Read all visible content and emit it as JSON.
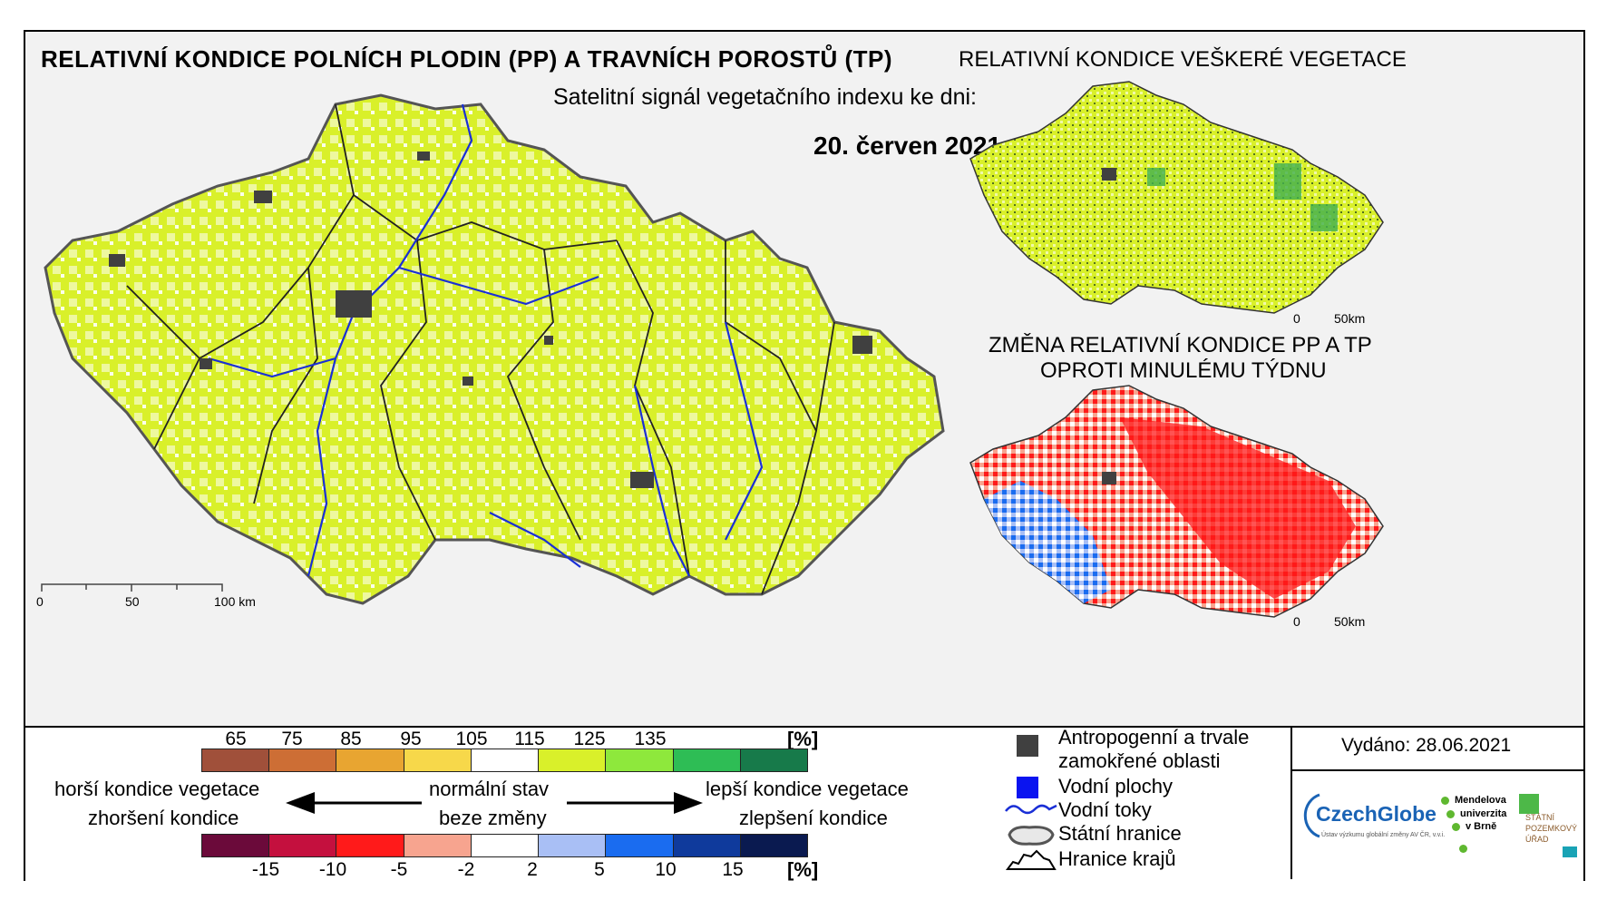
{
  "main": {
    "title": "RELATIVNÍ KONDICE POLNÍCH PLODIN (PP) A TRAVNÍCH POROSTŮ (TP)",
    "subtitle": "Satelitní signál vegetačního indexu ke dni:",
    "date": "20. červen 2021",
    "scale": [
      "0",
      "50",
      "100 km"
    ]
  },
  "inset_top": {
    "title": "RELATIVNÍ KONDICE VEŠKERÉ VEGETACE",
    "scale": [
      "0",
      "50km"
    ]
  },
  "inset_bottom": {
    "title_line1": "ZMĚNA RELATIVNÍ KONDICE PP A TP",
    "title_line2": "OPROTI MINULÉMU TÝDNU",
    "scale": [
      "0",
      "50km"
    ]
  },
  "legend": {
    "condition_ticks": [
      "65",
      "75",
      "85",
      "95",
      "105",
      "115",
      "125",
      "135"
    ],
    "condition_unit": "[%]",
    "condition_colors": [
      "#a0503a",
      "#cd6e35",
      "#e8a531",
      "#f7d84a",
      "#ffffff",
      "#d9f02a",
      "#8ee83c",
      "#2ebd55",
      "#177a4a"
    ],
    "change_ticks": [
      "-15",
      "-10",
      "-5",
      "-2",
      "2",
      "5",
      "10",
      "15"
    ],
    "change_unit": "[%]",
    "change_colors": [
      "#6b0a3a",
      "#c4103e",
      "#ff1a1a",
      "#f7a48f",
      "#ffffff",
      "#a9bff5",
      "#1a6cf0",
      "#0f3a9c",
      "#0a1a50"
    ],
    "worse_line1": "horší kondice vegetace",
    "worse_line2": "zhoršení kondice",
    "normal_line1": "normální stav",
    "normal_line2": "beze změny",
    "better_line1": "lepší kondice vegetace",
    "better_line2": "zlepšení kondice",
    "symbols": {
      "anthro_line1": "Antropogenní a trvale",
      "anthro_line2": "zamokřené oblasti",
      "water_areas": "Vodní plochy",
      "rivers": "Vodní toky",
      "state_border": "Státní hranice",
      "region_border": "Hranice krajů"
    },
    "issued": "Vydáno: 28.06.2021",
    "logos": {
      "czechglobe": "CzechGlobe",
      "czechglobe_sub": "Ústav výzkumu globální změny AV ČR, v.v.i.",
      "mendel_line1": "Mendelova",
      "mendel_line2": "univerzita",
      "mendel_line3": "v Brně",
      "spu_line1": "STÁTNÍ",
      "spu_line2": "POZEMKOVÝ",
      "spu_line3": "ÚŘAD"
    }
  },
  "colors": {
    "vegetation": "#d9f02a",
    "urban": "#404040",
    "river": "#1a2fd6",
    "decline": "#ff1a1a",
    "improve": "#1a6cf0"
  }
}
